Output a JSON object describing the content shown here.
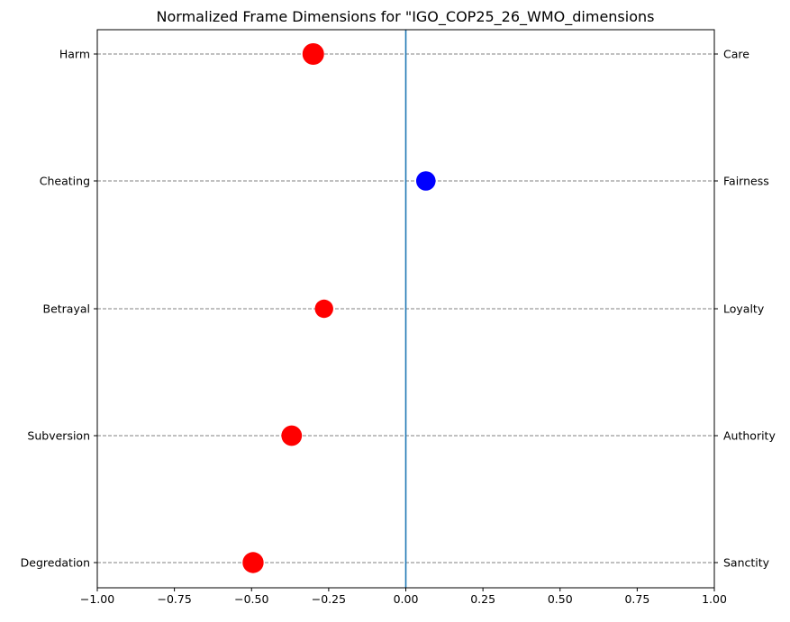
{
  "chart_data": {
    "type": "scatter",
    "title": "Normalized Frame Dimensions for \"IGO_COP25_26_WMO_dimensions",
    "xlabel": "",
    "ylabel": "",
    "xlim": [
      -1.0,
      1.0
    ],
    "xticks": [
      "−1.00",
      "−0.75",
      "−0.50",
      "−0.25",
      "0.00",
      "0.25",
      "0.50",
      "0.75",
      "1.00"
    ],
    "xtick_values": [
      -1.0,
      -0.75,
      -0.5,
      -0.25,
      0.0,
      0.25,
      0.5,
      0.75,
      1.0
    ],
    "left_labels": [
      "Harm",
      "Cheating",
      "Betrayal",
      "Subversion",
      "Degredation"
    ],
    "right_labels": [
      "Care",
      "Fairness",
      "Loyalty",
      "Authority",
      "Sanctity"
    ],
    "points": [
      {
        "category": "Care",
        "x": -0.3,
        "size": 1.0,
        "color": "#ff0000"
      },
      {
        "category": "Fairness",
        "x": 0.065,
        "size": 0.8,
        "color": "#0000ff"
      },
      {
        "category": "Loyalty",
        "x": -0.265,
        "size": 0.7,
        "color": "#ff0000"
      },
      {
        "category": "Authority",
        "x": -0.37,
        "size": 0.9,
        "color": "#ff0000"
      },
      {
        "category": "Sanctity",
        "x": -0.495,
        "size": 0.95,
        "color": "#ff0000"
      }
    ],
    "zero_line_color": "#1f77b4",
    "grid": "horizontal dashed",
    "grid_color": "#808080"
  }
}
